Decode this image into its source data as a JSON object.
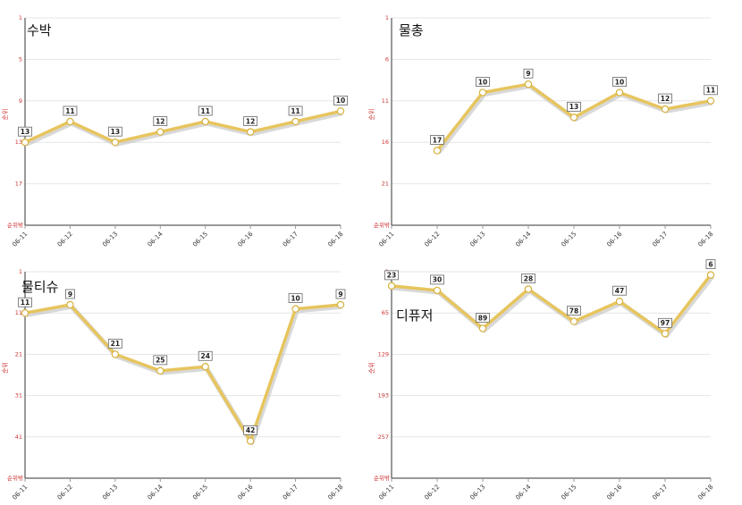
{
  "chart_data": [
    {
      "type": "line",
      "title": "수박",
      "ylabel": "순위",
      "y_reversed": true,
      "ylim": [
        1,
        21
      ],
      "yticks": [
        1,
        5,
        9,
        13,
        17
      ],
      "bottom_label": "순위밖",
      "x": [
        "06-11",
        "06-12",
        "06-13",
        "06-14",
        "06-15",
        "06-16",
        "06-17",
        "06-18"
      ],
      "values": [
        13,
        11,
        13,
        12,
        11,
        12,
        11,
        10
      ],
      "line_color": "#e7c55e"
    },
    {
      "type": "line",
      "title": "물총",
      "ylabel": "순위",
      "y_reversed": true,
      "ylim": [
        1,
        26
      ],
      "yticks": [
        1,
        6,
        11,
        16,
        21
      ],
      "bottom_label": "순위밖",
      "x": [
        "06-11",
        "06-12",
        "06-13",
        "06-14",
        "06-15",
        "06-16",
        "06-17",
        "06-18"
      ],
      "values": [
        null,
        17,
        10,
        9,
        13,
        10,
        12,
        11
      ],
      "line_color": "#e7c55e"
    },
    {
      "type": "line",
      "title": "물티슈",
      "ylabel": "순위",
      "y_reversed": true,
      "ylim": [
        1,
        51
      ],
      "yticks": [
        1,
        11,
        21,
        31,
        41
      ],
      "bottom_label": "순위밖",
      "x": [
        "06-11",
        "06-12",
        "06-13",
        "06-14",
        "06-15",
        "06-16",
        "06-17",
        "06-18"
      ],
      "values": [
        11,
        9,
        21,
        25,
        24,
        42,
        10,
        9
      ],
      "line_color": "#e7c55e"
    },
    {
      "type": "line",
      "title": "디퓨저",
      "ylabel": "순위",
      "y_reversed": true,
      "ylim": [
        1,
        321
      ],
      "yticks": [
        1,
        65,
        129,
        193,
        257
      ],
      "bottom_label": "순위밖",
      "x": [
        "06-11",
        "06-12",
        "06-13",
        "06-14",
        "06-15",
        "06-16",
        "06-17",
        "06-18"
      ],
      "values": [
        23,
        30,
        89,
        28,
        78,
        47,
        97,
        6
      ],
      "line_color": "#e7c55e"
    }
  ]
}
